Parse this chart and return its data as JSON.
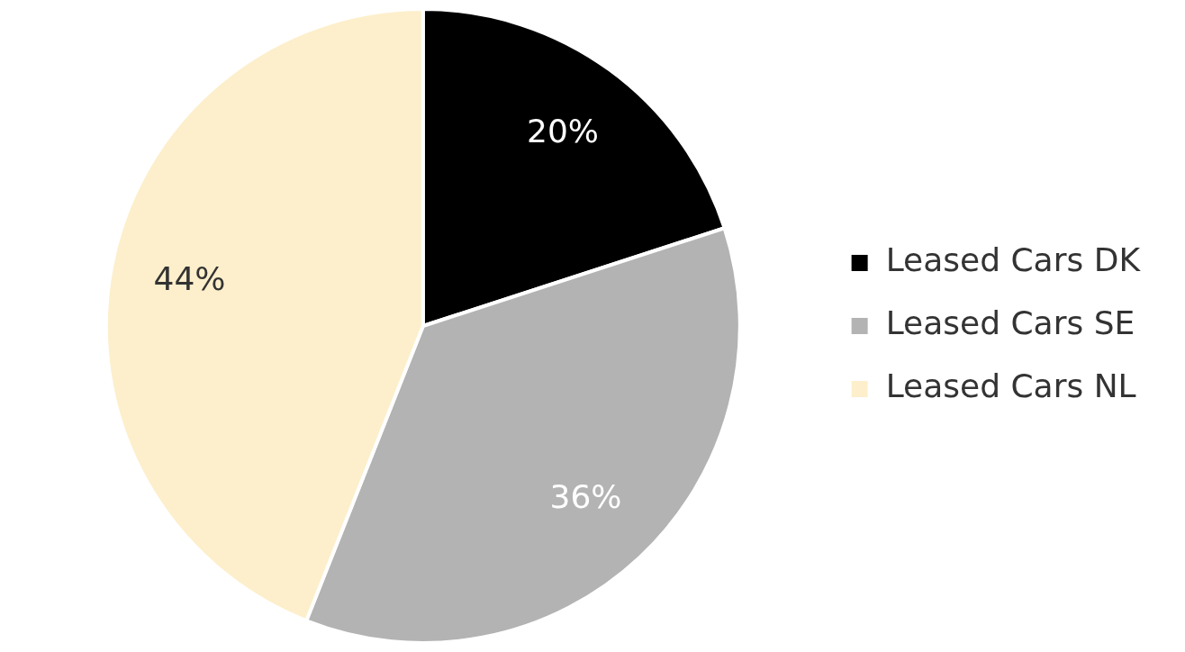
{
  "chart_data": {
    "type": "pie",
    "categories": [
      "Leased Cars DK",
      "Leased Cars SE",
      "Leased Cars NL"
    ],
    "values": [
      20,
      36,
      44
    ],
    "colors": [
      "#000000",
      "#b3b3b3",
      "#fdefcb"
    ],
    "value_labels": [
      "20%",
      "36%",
      "44%"
    ],
    "legend": "right"
  }
}
